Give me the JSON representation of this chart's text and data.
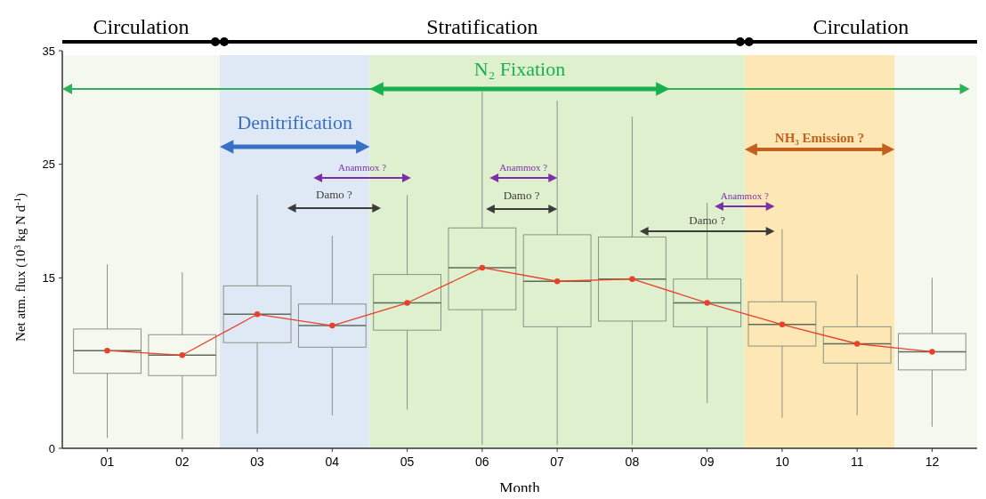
{
  "chart_data": {
    "type": "box",
    "xlabel": "Month",
    "ylabel": "Net atm. flux  (10$^{3}$ kg N d$^{-1}$)",
    "x": [
      1,
      2,
      3,
      4,
      5,
      6,
      7,
      8,
      9,
      10,
      11,
      12
    ],
    "xlim": [
      0.4,
      12.6
    ],
    "xticks": [
      {
        "value": 1,
        "label": "01"
      },
      {
        "value": 2,
        "label": "02"
      },
      {
        "value": 3,
        "label": "03"
      },
      {
        "value": 4,
        "label": "04"
      },
      {
        "value": 5,
        "label": "05"
      },
      {
        "value": 6,
        "label": "06"
      },
      {
        "value": 7,
        "label": "07"
      },
      {
        "value": 8,
        "label": "08"
      },
      {
        "value": 9,
        "label": "09"
      },
      {
        "value": 10,
        "label": "10"
      },
      {
        "value": 11,
        "label": "11"
      },
      {
        "value": 12,
        "label": "12"
      }
    ],
    "ylim": [
      0,
      35
    ],
    "yticks": [
      0,
      15,
      25,
      35
    ],
    "marker": "circle",
    "series": [
      {
        "color": "#8a9186",
        "boxes": [
          {
            "low": 0.9,
            "q1": 6.6,
            "median": 8.6,
            "q3": 10.5,
            "high": 16.2
          },
          {
            "low": 0.8,
            "q1": 6.4,
            "median": 8.2,
            "q3": 10.0,
            "high": 15.5
          },
          {
            "low": 1.3,
            "q1": 9.3,
            "median": 11.8,
            "q3": 14.3,
            "high": 22.3
          },
          {
            "low": 2.9,
            "q1": 8.9,
            "median": 10.8,
            "q3": 12.7,
            "high": 18.7
          },
          {
            "low": 3.4,
            "q1": 10.4,
            "median": 12.8,
            "q3": 15.3,
            "high": 22.3
          },
          {
            "low": 0.3,
            "q1": 12.2,
            "median": 15.9,
            "q3": 19.4,
            "high": 31.4
          },
          {
            "low": 0.3,
            "q1": 10.7,
            "median": 14.7,
            "q3": 18.8,
            "high": 30.6
          },
          {
            "low": 0.3,
            "q1": 11.2,
            "median": 14.9,
            "q3": 18.6,
            "high": 29.2
          },
          {
            "low": 4.0,
            "q1": 10.7,
            "median": 12.8,
            "q3": 14.9,
            "high": 21.6
          },
          {
            "low": 2.7,
            "q1": 9.0,
            "median": 10.9,
            "q3": 12.9,
            "high": 19.3
          },
          {
            "low": 2.9,
            "q1": 7.5,
            "median": 9.2,
            "q3": 10.7,
            "high": 15.3
          },
          {
            "low": 1.9,
            "q1": 6.9,
            "median": 8.5,
            "q3": 10.1,
            "high": 15.0
          }
        ]
      },
      {
        "type": "line",
        "color": "#e8402a",
        "values": [
          8.6,
          8.2,
          11.8,
          10.8,
          12.8,
          15.9,
          14.7,
          14.9,
          12.8,
          10.9,
          9.2,
          8.5
        ]
      }
    ],
    "bands": [
      {
        "axis": "x",
        "from": 0.4,
        "to": 2.5,
        "color": "#f4f8ef"
      },
      {
        "axis": "x",
        "from": 2.5,
        "to": 4.5,
        "color": "#dfe9f5"
      },
      {
        "axis": "x",
        "from": 4.5,
        "to": 9.5,
        "color": "#def0cd"
      },
      {
        "axis": "x",
        "from": 9.5,
        "to": 11.5,
        "color": "#fde8b5"
      },
      {
        "axis": "x",
        "from": 11.5,
        "to": 12.6,
        "color": "#f4f8ef"
      }
    ],
    "annotations": [
      "Circulation",
      "Stratification",
      "Circulation",
      "N₂ Fixation",
      "Denitrification",
      "NH₃ Emission ?",
      "Anammox ?",
      "Anammox ?",
      "Anammox ?",
      "Damo ?",
      "Damo ?",
      "Damo ?"
    ]
  }
}
